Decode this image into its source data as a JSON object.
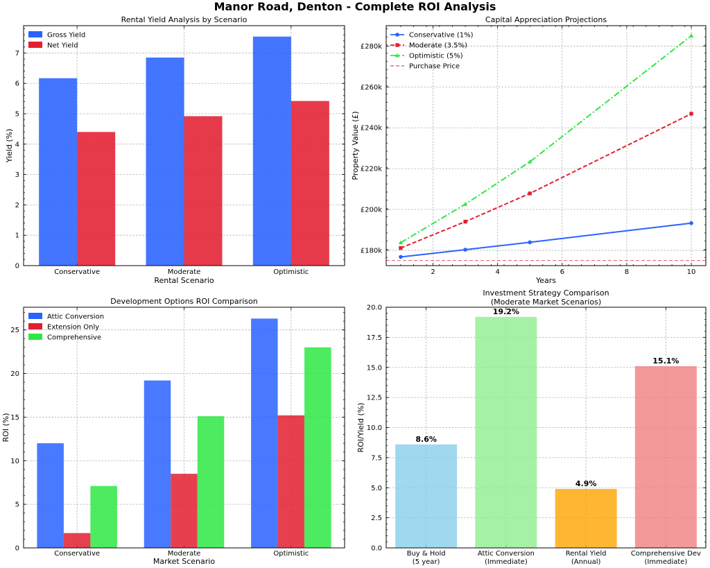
{
  "suptitle": "Manor Road, Denton - Complete ROI Analysis",
  "colors": {
    "blue": "#2962ff",
    "red": "#e21f31",
    "green": "#2ee843",
    "sky": "#87ceeb",
    "lightgreen": "#90ee90",
    "orange": "#ffa500",
    "lightcoral": "#f08080"
  },
  "chart_data": [
    {
      "id": "yield",
      "type": "bar",
      "title": "Rental Yield Analysis by Scenario",
      "xlabel": "Rental Scenario",
      "ylabel": "Yield (%)",
      "categories": [
        "Conservative",
        "Moderate",
        "Optimistic"
      ],
      "series": [
        {
          "name": "Gross Yield",
          "values": [
            6.17,
            6.85,
            7.54
          ]
        },
        {
          "name": "Net Yield",
          "values": [
            4.4,
            4.92,
            5.42
          ]
        }
      ],
      "ylim": [
        0,
        7.9
      ],
      "yticks": [
        0,
        1,
        2,
        3,
        4,
        5,
        6,
        7
      ],
      "yticklabels": [
        "0",
        "1",
        "2",
        "3",
        "4",
        "5",
        "6",
        "7"
      ],
      "legend": "top-left"
    },
    {
      "id": "capital",
      "type": "line",
      "title": "Capital Appreciation Projections",
      "xlabel": "Years",
      "ylabel": "Property Value (£)",
      "x": [
        1,
        3,
        5,
        10
      ],
      "series": [
        {
          "name": "Conservative (1%)",
          "values": [
            176750,
            180303,
            183927,
            193309
          ]
        },
        {
          "name": "Moderate (3.5%)",
          "values": [
            181125,
            194028,
            207849,
            246860
          ]
        },
        {
          "name": "Optimistic (5%)",
          "values": [
            183750,
            202584,
            223349,
            285054
          ]
        }
      ],
      "reference": {
        "name": "Purchase Price",
        "value": 175000
      },
      "xlim": [
        0.55,
        10.45
      ],
      "ylim": [
        172500,
        290000
      ],
      "xticks": [
        2,
        4,
        6,
        8,
        10
      ],
      "xticklabels": [
        "2",
        "4",
        "6",
        "8",
        "10"
      ],
      "yticks": [
        180000,
        200000,
        220000,
        240000,
        260000,
        280000
      ],
      "yticklabels": [
        "£180k",
        "£200k",
        "£220k",
        "£240k",
        "£260k",
        "£280k"
      ],
      "legend": "top-left"
    },
    {
      "id": "dev",
      "type": "bar",
      "title": "Development Options ROI Comparison",
      "xlabel": "Market Scenario",
      "ylabel": "ROI (%)",
      "categories": [
        "Conservative",
        "Moderate",
        "Optimistic"
      ],
      "series": [
        {
          "name": "Attic Conversion",
          "values": [
            12.0,
            19.2,
            26.3
          ]
        },
        {
          "name": "Extension Only",
          "values": [
            1.7,
            8.5,
            15.2
          ]
        },
        {
          "name": "Comprehensive",
          "values": [
            7.1,
            15.1,
            23.0
          ]
        }
      ],
      "ylim": [
        0,
        27.6
      ],
      "yticks": [
        0,
        5,
        10,
        15,
        20,
        25
      ],
      "yticklabels": [
        "0",
        "5",
        "10",
        "15",
        "20",
        "25"
      ],
      "legend": "top-left"
    },
    {
      "id": "strategy",
      "type": "bar",
      "title": "Investment Strategy Comparison",
      "subtitle": "(Moderate Market Scenarios)",
      "xlabel": "",
      "ylabel": "ROI/Yield (%)",
      "categories": [
        [
          "Buy & Hold",
          "(5 year)"
        ],
        [
          "Attic Conversion",
          "(Immediate)"
        ],
        [
          "Rental Yield",
          "(Annual)"
        ],
        [
          "Comprehensive Dev",
          "(Immediate)"
        ]
      ],
      "values": [
        8.6,
        19.2,
        4.9,
        15.1
      ],
      "data_labels": [
        "8.6%",
        "19.2%",
        "4.9%",
        "15.1%"
      ],
      "ylim": [
        0,
        20
      ],
      "yticks": [
        0,
        2.5,
        5,
        7.5,
        10,
        12.5,
        15,
        17.5,
        20
      ],
      "yticklabels": [
        "0.0",
        "2.5",
        "5.0",
        "7.5",
        "10.0",
        "12.5",
        "15.0",
        "17.5",
        "20.0"
      ]
    }
  ]
}
